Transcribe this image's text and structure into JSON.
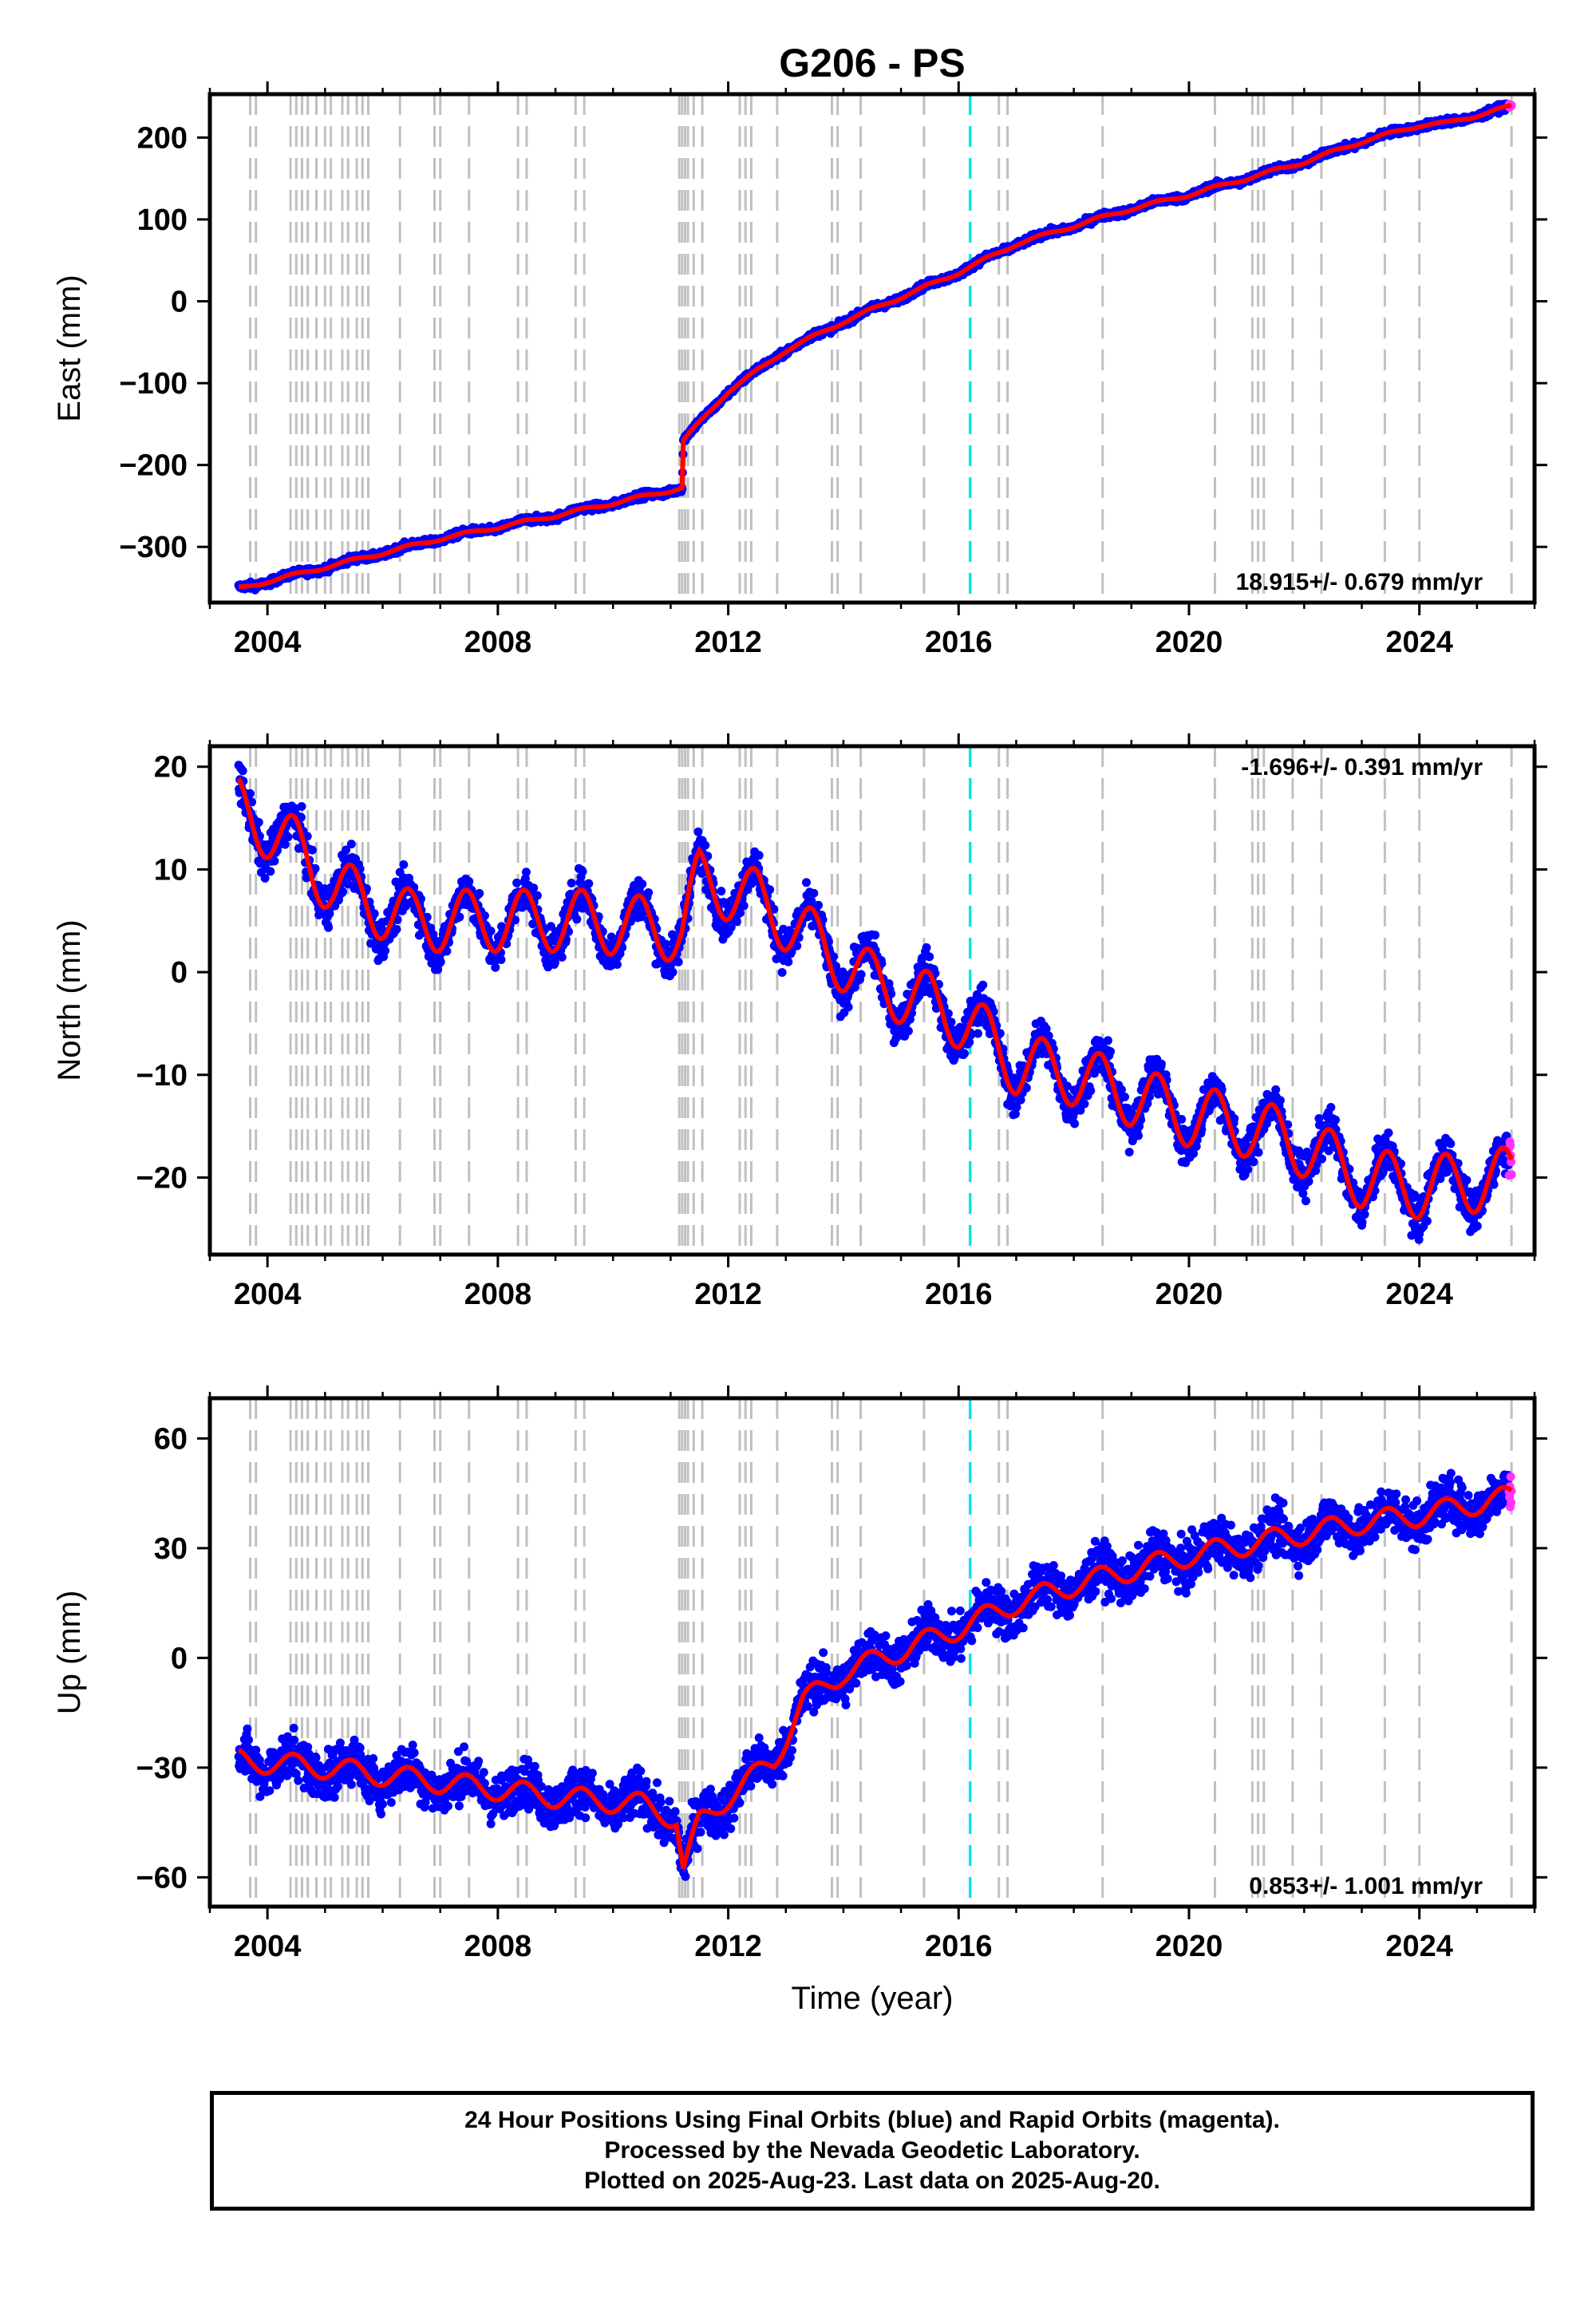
{
  "title": "G206 - PS",
  "caption": {
    "lines": [
      "24 Hour Positions Using Final Orbits (blue) and Rapid Orbits (magenta).",
      "Processed by the Nevada Geodetic Laboratory.",
      "Plotted on 2025-Aug-23. Last data on 2025-Aug-20."
    ]
  },
  "colors": {
    "final": "#0000ff",
    "rapid": "#ff33ff",
    "fit": "#ff0000",
    "event_line": "#c0c0c0",
    "highlight_line": "#00e5e5"
  },
  "chart_data": [
    {
      "type": "scatter",
      "component": "East",
      "ylabel": "East (mm)",
      "xlabel": "",
      "xlim": [
        2003.0,
        2026.0
      ],
      "ylim": [
        -368,
        253
      ],
      "xticks": [
        2004,
        2008,
        2012,
        2016,
        2020,
        2024
      ],
      "yticks": [
        -300,
        -200,
        -100,
        0,
        100,
        200
      ],
      "ytick_labels": [
        "−300",
        "−200",
        "−100",
        "0",
        "100",
        "200"
      ],
      "rate_text": "18.915+/- 0.679 mm/yr",
      "rate_position": "bottom-right",
      "trend_points": [
        [
          2003.5,
          -351
        ],
        [
          2005.0,
          -325
        ],
        [
          2007.0,
          -290
        ],
        [
          2009.0,
          -262
        ],
        [
          2011.2,
          -228
        ],
        [
          2011.22,
          -170
        ],
        [
          2012.0,
          -110
        ],
        [
          2013.0,
          -60
        ],
        [
          2014.0,
          -25
        ],
        [
          2015.0,
          5
        ],
        [
          2016.0,
          35
        ],
        [
          2017.0,
          70
        ],
        [
          2018.0,
          92
        ],
        [
          2019.0,
          113
        ],
        [
          2020.0,
          130
        ],
        [
          2021.0,
          150
        ],
        [
          2022.0,
          170
        ],
        [
          2023.0,
          195
        ],
        [
          2024.0,
          215
        ],
        [
          2024.5,
          218
        ],
        [
          2025.6,
          238
        ]
      ],
      "noise_mm": 3,
      "seasonal_amp_mm": 2
    },
    {
      "type": "scatter",
      "component": "North",
      "ylabel": "North (mm)",
      "xlabel": "",
      "xlim": [
        2003.0,
        2026.0
      ],
      "ylim": [
        -27.5,
        22
      ],
      "xticks": [
        2004,
        2008,
        2012,
        2016,
        2020,
        2024
      ],
      "yticks": [
        -20,
        -10,
        0,
        10,
        20
      ],
      "ytick_labels": [
        "−20",
        "−10",
        "0",
        "10",
        "20"
      ],
      "rate_text": "-1.696+/- 0.391 mm/yr",
      "rate_position": "top-right",
      "trend_points": [
        [
          2003.5,
          16
        ],
        [
          2004.5,
          12
        ],
        [
          2005.2,
          8
        ],
        [
          2006.5,
          5
        ],
        [
          2008.0,
          5
        ],
        [
          2009.5,
          5
        ],
        [
          2011.2,
          4
        ],
        [
          2011.5,
          9
        ],
        [
          2012.5,
          7
        ],
        [
          2013.5,
          3
        ],
        [
          2014.5,
          -1
        ],
        [
          2015.5,
          -3
        ],
        [
          2016.2,
          -5
        ],
        [
          2017.0,
          -9
        ],
        [
          2018.0,
          -10
        ],
        [
          2019.0,
          -12
        ],
        [
          2020.0,
          -14
        ],
        [
          2021.0,
          -15
        ],
        [
          2022.0,
          -17
        ],
        [
          2023.0,
          -20
        ],
        [
          2024.0,
          -21
        ],
        [
          2025.6,
          -20
        ]
      ],
      "noise_mm": 1.4,
      "seasonal_amp_mm": 3
    },
    {
      "type": "scatter",
      "component": "Up",
      "ylabel": "Up (mm)",
      "xlabel": "Time (year)",
      "xlim": [
        2003.0,
        2026.0
      ],
      "ylim": [
        -68,
        71
      ],
      "xticks": [
        2004,
        2008,
        2012,
        2016,
        2020,
        2024
      ],
      "yticks": [
        -60,
        -30,
        0,
        30,
        60
      ],
      "ytick_labels": [
        "−60",
        "−30",
        "0",
        "30",
        "60"
      ],
      "rate_text": "0.853+/- 1.001 mm/yr",
      "rate_position": "bottom-right",
      "trend_points": [
        [
          2003.5,
          -28
        ],
        [
          2005.0,
          -30
        ],
        [
          2007.0,
          -34
        ],
        [
          2009.0,
          -38
        ],
        [
          2010.5,
          -40
        ],
        [
          2011.1,
          -44
        ],
        [
          2011.22,
          -58
        ],
        [
          2011.5,
          -45
        ],
        [
          2012.0,
          -38
        ],
        [
          2012.8,
          -28
        ],
        [
          2013.3,
          -12
        ],
        [
          2014.0,
          -4
        ],
        [
          2015.0,
          2
        ],
        [
          2016.0,
          8
        ],
        [
          2017.0,
          15
        ],
        [
          2018.0,
          20
        ],
        [
          2019.0,
          24
        ],
        [
          2020.0,
          28
        ],
        [
          2021.0,
          31
        ],
        [
          2022.0,
          34
        ],
        [
          2023.0,
          37
        ],
        [
          2024.0,
          39
        ],
        [
          2024.6,
          41
        ],
        [
          2025.6,
          44
        ]
      ],
      "noise_mm": 4.5,
      "seasonal_amp_mm": 3
    }
  ],
  "event_years": [
    2003.7,
    2003.8,
    2004.4,
    2004.5,
    2004.6,
    2004.7,
    2004.85,
    2005.0,
    2005.1,
    2005.3,
    2005.4,
    2005.55,
    2005.65,
    2005.75,
    2006.3,
    2006.9,
    2007.0,
    2007.5,
    2008.35,
    2008.5,
    2009.35,
    2009.5,
    2011.15,
    2011.2,
    2011.25,
    2011.3,
    2011.4,
    2011.55,
    2012.2,
    2012.3,
    2012.4,
    2012.85,
    2013.8,
    2013.9,
    2014.3,
    2015.4,
    2016.7,
    2016.85,
    2018.5,
    2020.45,
    2021.1,
    2021.2,
    2021.3,
    2021.8,
    2022.3,
    2023.4,
    2024.0,
    2025.6
  ],
  "highlight_year": 2016.2,
  "rapid_start_year": 2025.55
}
